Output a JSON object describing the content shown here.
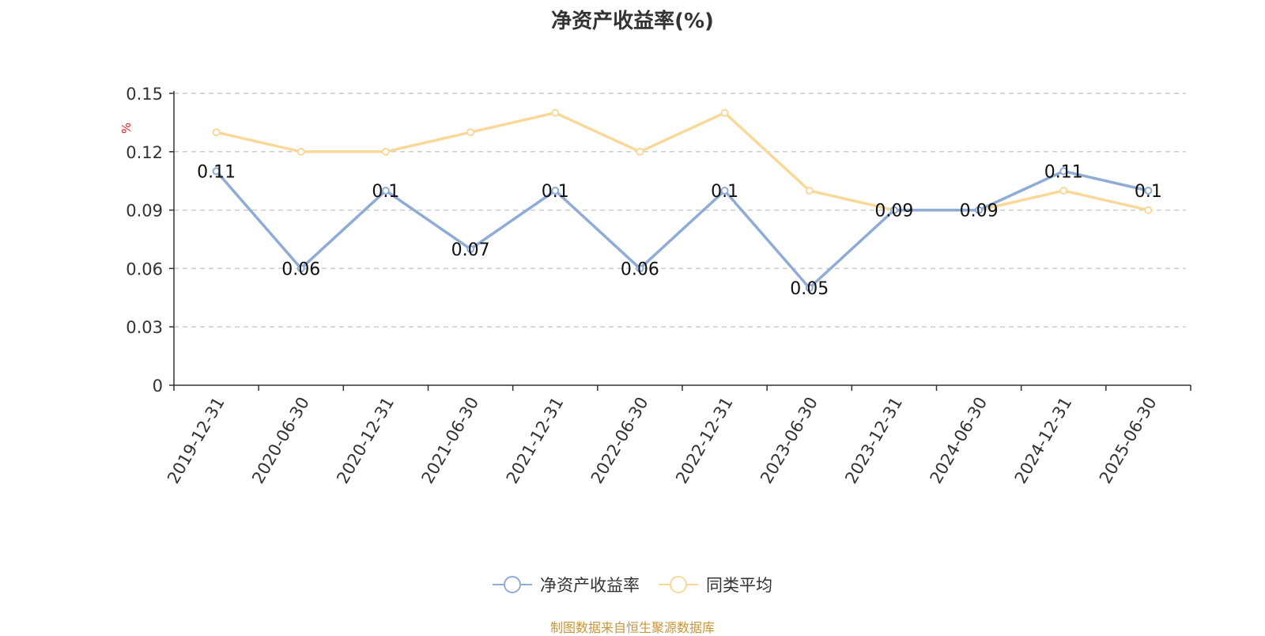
{
  "chart_data": {
    "type": "line",
    "title": "净资产收益率(%)",
    "ylabel": "%",
    "xlabel": "",
    "categories": [
      "2019-12-31",
      "2020-06-30",
      "2020-12-31",
      "2021-06-30",
      "2021-12-31",
      "2022-06-30",
      "2022-12-31",
      "2023-06-30",
      "2023-12-31",
      "2024-06-30",
      "2024-12-31",
      "2025-06-30"
    ],
    "ylim": [
      0,
      0.15
    ],
    "yticks": [
      "0",
      "0.03",
      "0.06",
      "0.09",
      "0.12",
      "0.15"
    ],
    "grid": true,
    "legend_position": "bottom-center",
    "series": [
      {
        "name": "净资产收益率",
        "color": "#8eacd6",
        "values": [
          0.11,
          0.06,
          0.1,
          0.07,
          0.1,
          0.06,
          0.1,
          0.05,
          0.09,
          0.09,
          0.11,
          0.1
        ],
        "data_labels": [
          "0.11",
          "0.06",
          "0.1",
          "0.07",
          "0.1",
          "0.06",
          "0.1",
          "0.05",
          "0.09",
          "0.09",
          "0.11",
          "0.1"
        ]
      },
      {
        "name": "同类平均",
        "color": "#f9d89a",
        "values": [
          0.13,
          0.12,
          0.12,
          0.13,
          0.14,
          0.12,
          0.14,
          0.1,
          0.09,
          0.09,
          0.1,
          0.09
        ]
      }
    ]
  },
  "footer": {
    "source": "制图数据来自恒生聚源数据库"
  }
}
